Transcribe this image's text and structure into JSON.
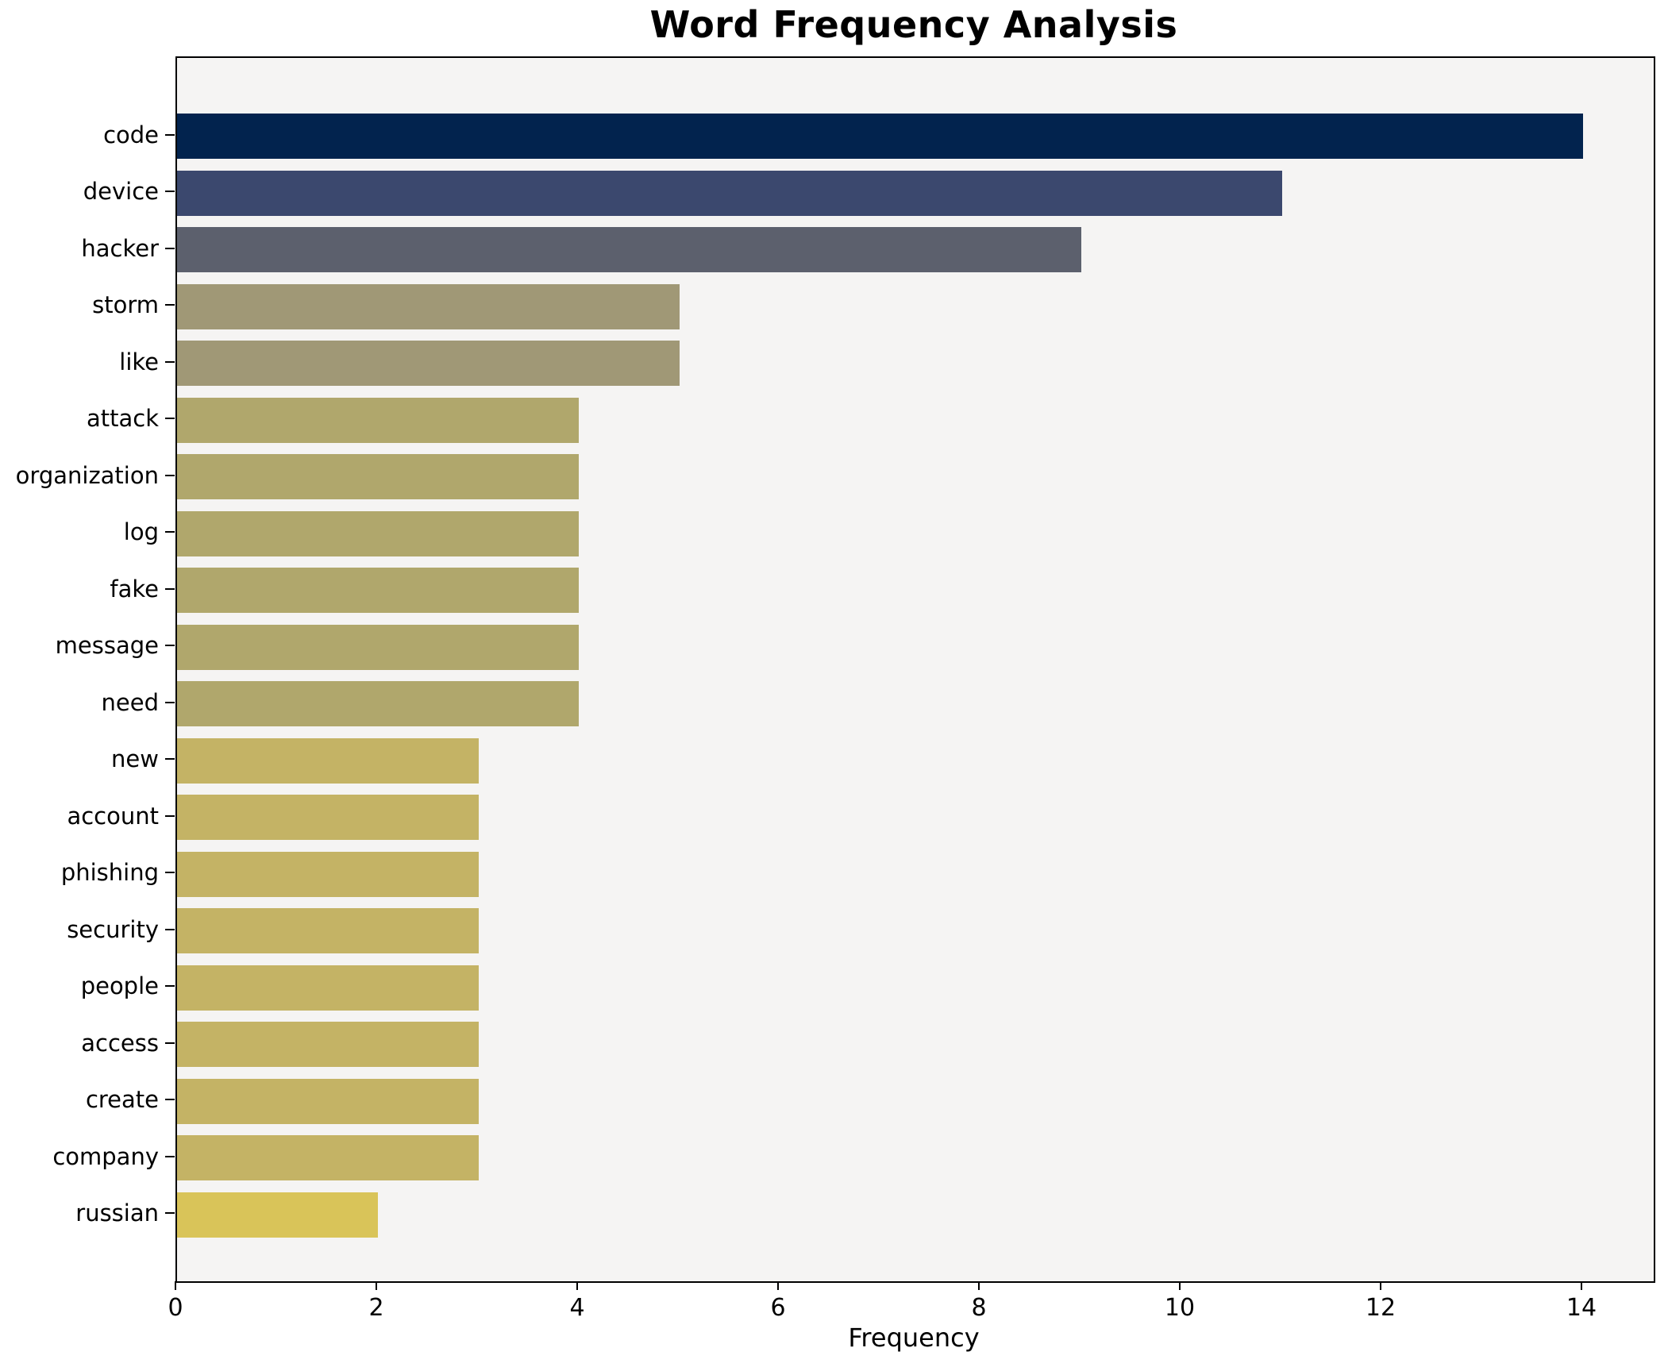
{
  "chart_data": {
    "type": "bar",
    "orientation": "horizontal",
    "title": "Word Frequency Analysis",
    "xlabel": "Frequency",
    "ylabel": "",
    "categories": [
      "code",
      "device",
      "hacker",
      "storm",
      "like",
      "attack",
      "organization",
      "log",
      "fake",
      "message",
      "need",
      "new",
      "account",
      "phishing",
      "security",
      "people",
      "access",
      "create",
      "company",
      "russian"
    ],
    "values": [
      14,
      11,
      9,
      5,
      5,
      4,
      4,
      4,
      4,
      4,
      4,
      3,
      3,
      3,
      3,
      3,
      3,
      3,
      3,
      2
    ],
    "bar_colors": [
      "#02234e",
      "#3b486e",
      "#5c606d",
      "#a09876",
      "#a09876",
      "#b0a76c",
      "#b0a76c",
      "#b0a76c",
      "#b0a76c",
      "#b0a76c",
      "#b0a76c",
      "#c4b365",
      "#c4b365",
      "#c4b365",
      "#c4b365",
      "#c4b365",
      "#c4b365",
      "#c4b365",
      "#c4b365",
      "#d9c459"
    ],
    "x_ticks": [
      0,
      2,
      4,
      6,
      8,
      10,
      12,
      14
    ],
    "xlim": [
      0,
      14.7
    ],
    "grid": false,
    "legend": null,
    "plot_background": "#f5f4f3",
    "figure_background": "#ffffff",
    "axis_color": "#000000"
  }
}
